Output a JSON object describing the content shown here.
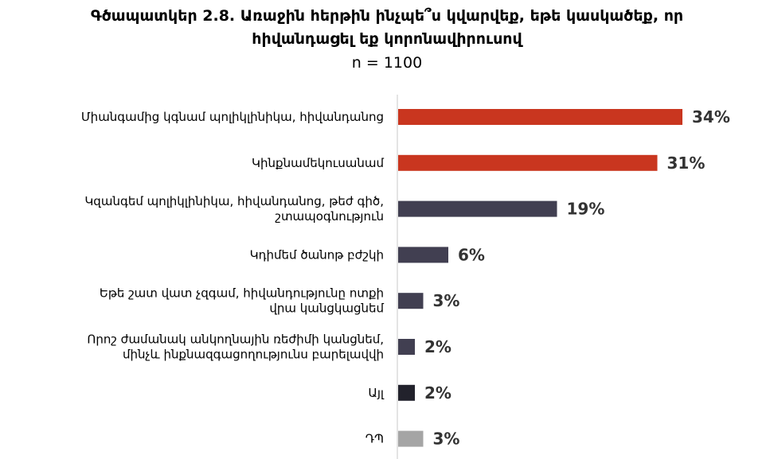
{
  "chart_data": {
    "type": "bar",
    "orientation": "horizontal",
    "title_lines": [
      "Գծապատկեր 2.8. Առաջին հերթին ինչպե՞ս կվարվեք, եթե կասկածեք, որ",
      "հիվանդացել եք կորոնավիրուսով"
    ],
    "subtitle": "n = 1100",
    "xlim": [
      0,
      100
    ],
    "value_suffix": "%",
    "bars": [
      {
        "label_lines": [
          "Միանգամից կգնամ պոլիկլինիկա, հիվանդանոց"
        ],
        "value": 34,
        "color": "#c9361f"
      },
      {
        "label_lines": [
          "Կինքնամեկուսանամ"
        ],
        "value": 31,
        "color": "#c9361f"
      },
      {
        "label_lines": [
          "Կզանգեմ պոլիկլինիկա, հիվանդանոց, թեժ գիծ,",
          "շտապօգնություն"
        ],
        "value": 19,
        "color": "#413f51"
      },
      {
        "label_lines": [
          "Կդիմեմ ծանոթ բժշկի"
        ],
        "value": 6,
        "color": "#413f51"
      },
      {
        "label_lines": [
          "Եթե շատ վատ չզգամ, հիվանդությունը ոտքի",
          "վրա կանցկացնեմ"
        ],
        "value": 3,
        "color": "#413f51"
      },
      {
        "label_lines": [
          "Որոշ ժամանակ անկողնային ռեժիմի կանցնեմ,",
          "մինչև ինքնազգացողությունս բարելավվի"
        ],
        "value": 2,
        "color": "#413f51"
      },
      {
        "label_lines": [
          "Այլ"
        ],
        "value": 2,
        "color": "#22222c"
      },
      {
        "label_lines": [
          "ԴՊ"
        ],
        "value": 3,
        "color": "#a5a5a5"
      }
    ]
  }
}
